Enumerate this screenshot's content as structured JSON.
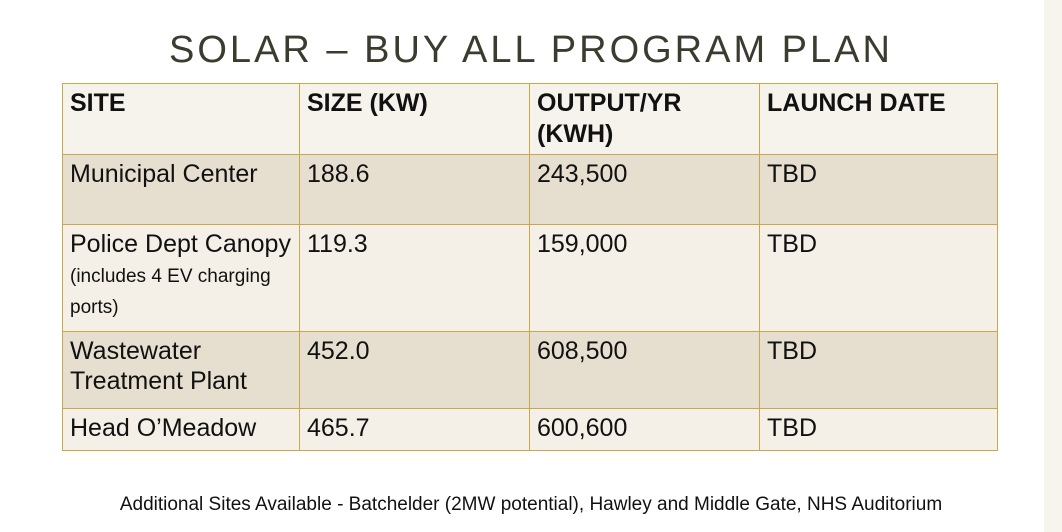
{
  "title": "SOLAR – BUY ALL PROGRAM PLAN",
  "table": {
    "headers": [
      "SITE",
      "SIZE (KW)",
      "OUTPUT/YR (KWH)",
      "LAUNCH DATE"
    ],
    "rows": [
      {
        "site": "Municipal Center",
        "site_note": "",
        "size": "188.6",
        "output": "243,500",
        "launch": "TBD"
      },
      {
        "site": "Police Dept Canopy",
        "site_note": "(includes 4 EV charging ports)",
        "size": "119.3",
        "output": "159,000",
        "launch": "TBD"
      },
      {
        "site": "Wastewater Treatment Plant",
        "site_note": "",
        "size": "452.0",
        "output": "608,500",
        "launch": "TBD"
      },
      {
        "site": "Head O’Meadow",
        "site_note": "",
        "size": "465.7",
        "output": "600,600",
        "launch": "TBD"
      }
    ]
  },
  "footer": "Additional Sites Available - Batchelder (2MW potential), Hawley and Middle Gate, NHS Auditorium",
  "colors": {
    "title": "#3b3b2f",
    "table_border": "#c9a84b",
    "header_bg": "#f6f3ec",
    "row_dark_bg": "#e6dfd0",
    "row_light_bg": "#f4f0e8"
  }
}
